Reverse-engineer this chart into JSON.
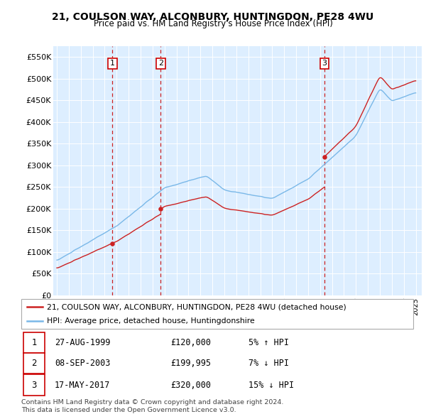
{
  "title": "21, COULSON WAY, ALCONBURY, HUNTINGDON, PE28 4WU",
  "subtitle": "Price paid vs. HM Land Registry's House Price Index (HPI)",
  "ylim": [
    0,
    575000
  ],
  "yticks": [
    0,
    50000,
    100000,
    150000,
    200000,
    250000,
    300000,
    350000,
    400000,
    450000,
    500000,
    550000
  ],
  "ytick_labels": [
    "£0",
    "£50K",
    "£100K",
    "£150K",
    "£200K",
    "£250K",
    "£300K",
    "£350K",
    "£400K",
    "£450K",
    "£500K",
    "£550K"
  ],
  "xlim_start": 1994.7,
  "xlim_end": 2025.5,
  "sale_dates": [
    1999.65,
    2003.69,
    2017.37
  ],
  "sale_prices": [
    120000,
    199995,
    320000
  ],
  "sale_labels": [
    "1",
    "2",
    "3"
  ],
  "hpi_color": "#7ab8e8",
  "price_color": "#cc2222",
  "vline_color": "#cc2222",
  "background_fill": "#ddeeff",
  "legend_label_price": "21, COULSON WAY, ALCONBURY, HUNTINGDON, PE28 4WU (detached house)",
  "legend_label_hpi": "HPI: Average price, detached house, Huntingdonshire",
  "table_entries": [
    {
      "num": "1",
      "date": "27-AUG-1999",
      "price": "£120,000",
      "hpi": "5% ↑ HPI"
    },
    {
      "num": "2",
      "date": "08-SEP-2003",
      "price": "£199,995",
      "hpi": "7% ↓ HPI"
    },
    {
      "num": "3",
      "date": "17-MAY-2017",
      "price": "£320,000",
      "hpi": "15% ↓ HPI"
    }
  ],
  "footer": "Contains HM Land Registry data © Crown copyright and database right 2024.\nThis data is licensed under the Open Government Licence v3.0."
}
